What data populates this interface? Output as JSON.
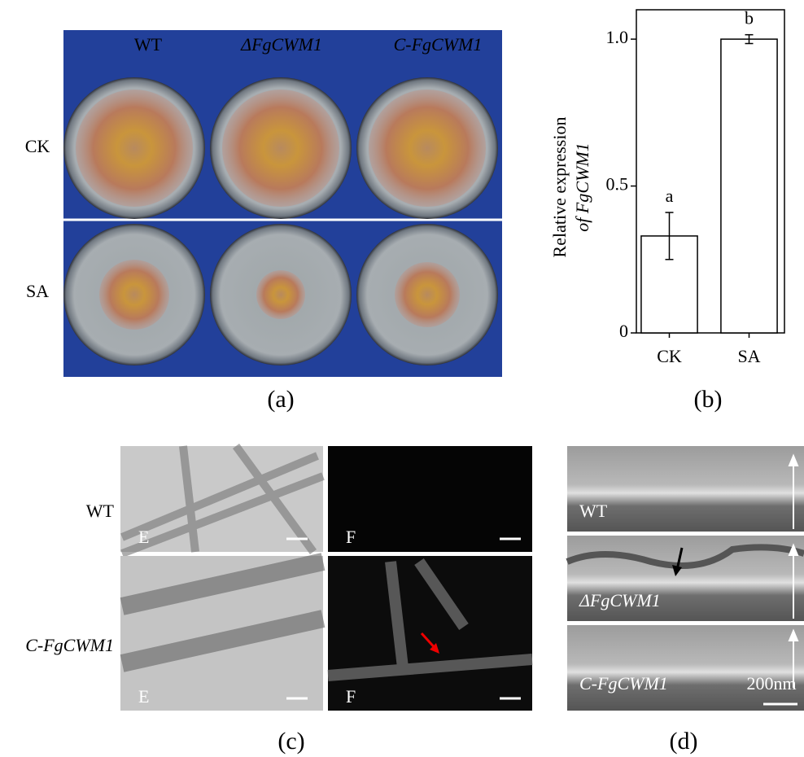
{
  "panel_a": {
    "columns": [
      "WT",
      "ΔFgCWM1",
      "C-FgCWM1"
    ],
    "rows": [
      "CK",
      "SA"
    ],
    "label": "(a)"
  },
  "chart_data": {
    "type": "bar",
    "categories": [
      "CK",
      "SA"
    ],
    "values": [
      0.33,
      1.0
    ],
    "errors": [
      0.08,
      0.015
    ],
    "annotations": [
      "a",
      "b"
    ],
    "ylabel": [
      "Relative expression",
      "of FgCWM1"
    ],
    "ylim": [
      0,
      1.1
    ],
    "yticks": [
      0,
      0.5,
      {
        "value": 1,
        "label": "1.0"
      }
    ],
    "color": "#ffffff",
    "label": "(b)"
  },
  "panel_c": {
    "rows": [
      "WT",
      "C-FgCWM1"
    ],
    "image_letters": [
      "E",
      "F"
    ],
    "label": "(c)"
  },
  "panel_d": {
    "rows": [
      "WT",
      "ΔFgCWM1",
      "C-FgCWM1"
    ],
    "scale": "200nm",
    "label": "(d)"
  }
}
